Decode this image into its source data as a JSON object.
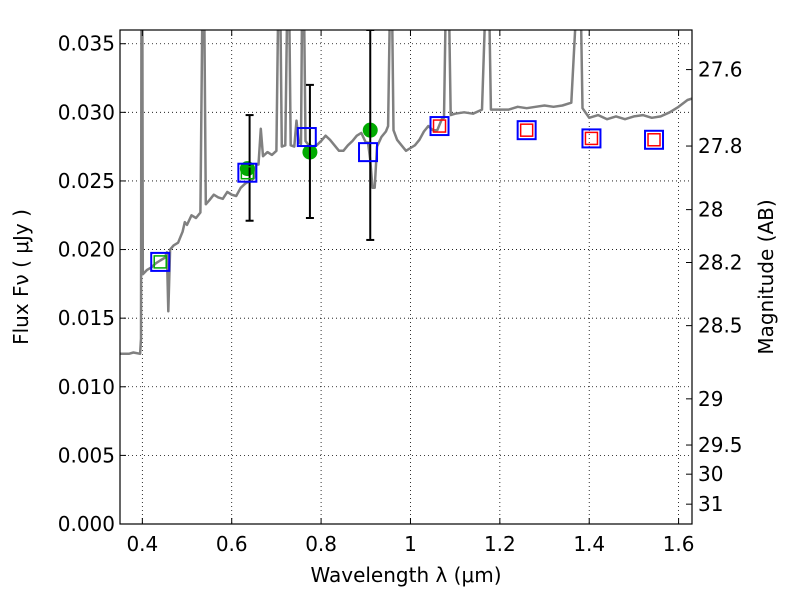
{
  "chart_data": {
    "type": "scatter",
    "xlabel": "Wavelength  λ (μm)",
    "ylabel": "Flux  Fν ( μJy )",
    "y2label": "Magnitude (AB)",
    "xlim": [
      0.35,
      1.63
    ],
    "ylim": [
      0.0,
      0.036
    ],
    "grid": true,
    "x_ticks": [
      {
        "value": 0.4,
        "label": "0.4"
      },
      {
        "value": 0.6,
        "label": "0.6"
      },
      {
        "value": 0.8,
        "label": "0.8"
      },
      {
        "value": 1.0,
        "label": "1"
      },
      {
        "value": 1.2,
        "label": "1.2"
      },
      {
        "value": 1.4,
        "label": "1.4"
      },
      {
        "value": 1.6,
        "label": "1.6"
      }
    ],
    "y_ticks": [
      {
        "value": 0.0,
        "label": "0.000"
      },
      {
        "value": 0.005,
        "label": "0.005"
      },
      {
        "value": 0.01,
        "label": "0.010"
      },
      {
        "value": 0.015,
        "label": "0.015"
      },
      {
        "value": 0.02,
        "label": "0.020"
      },
      {
        "value": 0.025,
        "label": "0.025"
      },
      {
        "value": 0.03,
        "label": "0.030"
      },
      {
        "value": 0.035,
        "label": "0.035"
      }
    ],
    "mag_ticks": [
      {
        "value": 27.6,
        "label": "27.6"
      },
      {
        "value": 27.8,
        "label": "27.8"
      },
      {
        "value": 28.0,
        "label": "28"
      },
      {
        "value": 28.2,
        "label": "28.2"
      },
      {
        "value": 28.5,
        "label": "28.5"
      },
      {
        "value": 29.0,
        "label": "29"
      },
      {
        "value": 29.5,
        "label": "29.5"
      },
      {
        "value": 30.0,
        "label": "30"
      },
      {
        "value": 31.0,
        "label": "31"
      }
    ],
    "series": [
      {
        "kind": "line",
        "color": "#808080",
        "points": [
          [
            0.35,
            0.0124
          ],
          [
            0.37,
            0.0124
          ],
          [
            0.38,
            0.0125
          ],
          [
            0.395,
            0.0124
          ],
          [
            0.397,
            0.0135
          ],
          [
            0.398,
            0.04
          ],
          [
            0.4,
            0.04
          ],
          [
            0.401,
            0.0182
          ],
          [
            0.41,
            0.0185
          ],
          [
            0.42,
            0.0187
          ],
          [
            0.43,
            0.019
          ],
          [
            0.44,
            0.0192
          ],
          [
            0.45,
            0.0194
          ],
          [
            0.455,
            0.0198
          ],
          [
            0.458,
            0.0155
          ],
          [
            0.462,
            0.02
          ],
          [
            0.47,
            0.0203
          ],
          [
            0.48,
            0.0205
          ],
          [
            0.49,
            0.0213
          ],
          [
            0.495,
            0.022
          ],
          [
            0.5,
            0.0218
          ],
          [
            0.51,
            0.0225
          ],
          [
            0.52,
            0.0223
          ],
          [
            0.53,
            0.0227
          ],
          [
            0.535,
            0.04
          ],
          [
            0.538,
            0.04
          ],
          [
            0.542,
            0.0233
          ],
          [
            0.55,
            0.0236
          ],
          [
            0.56,
            0.024
          ],
          [
            0.57,
            0.0238
          ],
          [
            0.58,
            0.0237
          ],
          [
            0.59,
            0.0242
          ],
          [
            0.6,
            0.024
          ],
          [
            0.61,
            0.0239
          ],
          [
            0.62,
            0.0245
          ],
          [
            0.63,
            0.0248
          ],
          [
            0.64,
            0.025
          ],
          [
            0.65,
            0.0252
          ],
          [
            0.655,
            0.0262
          ],
          [
            0.66,
            0.0262
          ],
          [
            0.665,
            0.0288
          ],
          [
            0.67,
            0.0268
          ],
          [
            0.68,
            0.0271
          ],
          [
            0.69,
            0.0269
          ],
          [
            0.7,
            0.0272
          ],
          [
            0.705,
            0.04
          ],
          [
            0.708,
            0.04
          ],
          [
            0.712,
            0.0275
          ],
          [
            0.72,
            0.0276
          ],
          [
            0.725,
            0.04
          ],
          [
            0.728,
            0.04
          ],
          [
            0.732,
            0.0276
          ],
          [
            0.74,
            0.0275
          ],
          [
            0.745,
            0.0294
          ],
          [
            0.75,
            0.0278
          ],
          [
            0.755,
            0.0277
          ],
          [
            0.758,
            0.04
          ],
          [
            0.761,
            0.04
          ],
          [
            0.765,
            0.0279
          ],
          [
            0.77,
            0.0277
          ],
          [
            0.78,
            0.0275
          ],
          [
            0.79,
            0.0276
          ],
          [
            0.8,
            0.0279
          ],
          [
            0.81,
            0.0283
          ],
          [
            0.82,
            0.028
          ],
          [
            0.83,
            0.0276
          ],
          [
            0.84,
            0.0272
          ],
          [
            0.85,
            0.0272
          ],
          [
            0.86,
            0.0276
          ],
          [
            0.87,
            0.0279
          ],
          [
            0.88,
            0.0283
          ],
          [
            0.89,
            0.0285
          ],
          [
            0.9,
            0.0278
          ],
          [
            0.905,
            0.0278
          ],
          [
            0.91,
            0.0265
          ],
          [
            0.915,
            0.0245
          ],
          [
            0.92,
            0.0245
          ],
          [
            0.925,
            0.0275
          ],
          [
            0.935,
            0.0282
          ],
          [
            0.945,
            0.0286
          ],
          [
            0.95,
            0.029
          ],
          [
            0.955,
            0.04
          ],
          [
            0.958,
            0.04
          ],
          [
            0.962,
            0.0287
          ],
          [
            0.97,
            0.028
          ],
          [
            0.98,
            0.0276
          ],
          [
            0.99,
            0.0272
          ],
          [
            1.0,
            0.0274
          ],
          [
            1.01,
            0.0276
          ],
          [
            1.02,
            0.028
          ],
          [
            1.03,
            0.0286
          ],
          [
            1.04,
            0.029
          ],
          [
            1.05,
            0.0287
          ],
          [
            1.06,
            0.0287
          ],
          [
            1.07,
            0.0295
          ],
          [
            1.075,
            0.0296
          ],
          [
            1.08,
            0.04
          ],
          [
            1.085,
            0.04
          ],
          [
            1.09,
            0.0298
          ],
          [
            1.1,
            0.0299
          ],
          [
            1.12,
            0.03
          ],
          [
            1.14,
            0.0299
          ],
          [
            1.16,
            0.0302
          ],
          [
            1.17,
            0.04
          ],
          [
            1.175,
            0.04
          ],
          [
            1.18,
            0.0302
          ],
          [
            1.2,
            0.0302
          ],
          [
            1.22,
            0.0302
          ],
          [
            1.24,
            0.0304
          ],
          [
            1.26,
            0.0303
          ],
          [
            1.28,
            0.0304
          ],
          [
            1.3,
            0.0305
          ],
          [
            1.32,
            0.0304
          ],
          [
            1.34,
            0.0305
          ],
          [
            1.36,
            0.0307
          ],
          [
            1.375,
            0.04
          ],
          [
            1.38,
            0.04
          ],
          [
            1.385,
            0.0303
          ],
          [
            1.4,
            0.0296
          ],
          [
            1.42,
            0.0298
          ],
          [
            1.44,
            0.0295
          ],
          [
            1.46,
            0.0297
          ],
          [
            1.48,
            0.0295
          ],
          [
            1.5,
            0.0297
          ],
          [
            1.52,
            0.0298
          ],
          [
            1.54,
            0.0296
          ],
          [
            1.56,
            0.0297
          ],
          [
            1.58,
            0.03
          ],
          [
            1.6,
            0.0304
          ],
          [
            1.62,
            0.0309
          ],
          [
            1.63,
            0.031
          ]
        ]
      },
      {
        "kind": "points",
        "color": "#00aa00",
        "shape": "circle",
        "points": [
          [
            0.635,
            0.0259
          ],
          [
            0.775,
            0.0271
          ],
          [
            0.91,
            0.0287
          ]
        ]
      },
      {
        "kind": "errorbars",
        "color": "#000000",
        "bars": [
          [
            0.64,
            0.0221,
            0.0298
          ],
          [
            0.775,
            0.0223,
            0.032
          ],
          [
            0.91,
            0.0207,
            0.036
          ]
        ]
      },
      {
        "kind": "points",
        "color": "#0000ff",
        "shape": "square-large",
        "points": [
          [
            0.44,
            0.0191
          ],
          [
            0.635,
            0.0256
          ],
          [
            0.768,
            0.0282
          ],
          [
            0.905,
            0.0271
          ],
          [
            1.065,
            0.029
          ],
          [
            1.26,
            0.0287
          ],
          [
            1.405,
            0.0281
          ],
          [
            1.545,
            0.028
          ]
        ]
      },
      {
        "kind": "points",
        "color": "#ff0000",
        "shape": "square-small",
        "points": [
          [
            1.065,
            0.029
          ],
          [
            1.26,
            0.0287
          ],
          [
            1.405,
            0.0281
          ],
          [
            1.545,
            0.028
          ]
        ]
      },
      {
        "kind": "points",
        "color": "#00aa00",
        "shape": "square-small",
        "points": [
          [
            0.44,
            0.0191
          ],
          [
            0.635,
            0.0256
          ]
        ]
      }
    ]
  }
}
